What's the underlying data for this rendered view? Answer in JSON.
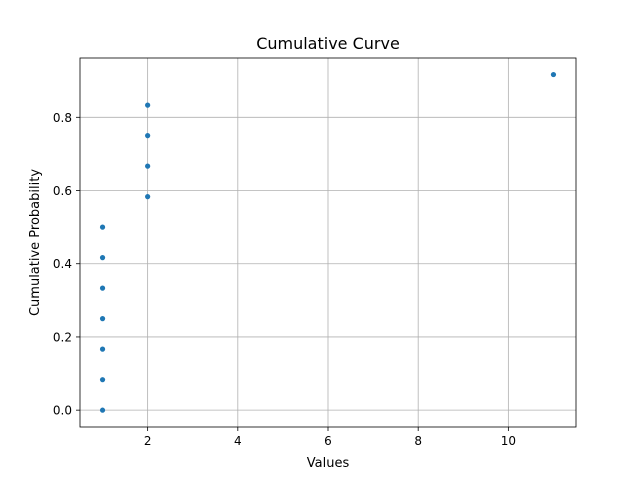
{
  "chart_data": {
    "type": "scatter",
    "title": "Cumulative Curve",
    "xlabel": "Values",
    "ylabel": "Cumulative Probability",
    "xlim": [
      0.5,
      11.5
    ],
    "ylim": [
      -0.046,
      0.962
    ],
    "xticks": [
      2,
      4,
      6,
      8,
      10
    ],
    "yticks": [
      0.0,
      0.2,
      0.4,
      0.6,
      0.8
    ],
    "xtick_labels": [
      "2",
      "4",
      "6",
      "8",
      "10"
    ],
    "ytick_labels": [
      "0.0",
      "0.2",
      "0.4",
      "0.6",
      "0.8"
    ],
    "grid": true,
    "marker_color": "#1f77b4",
    "series": [
      {
        "x": [
          1,
          1,
          1,
          1,
          1,
          1,
          1,
          2,
          2,
          2,
          2,
          11
        ],
        "y": [
          0.0,
          0.0833,
          0.1667,
          0.25,
          0.3333,
          0.4167,
          0.5,
          0.5833,
          0.6667,
          0.75,
          0.8333,
          0.9167
        ]
      }
    ]
  }
}
